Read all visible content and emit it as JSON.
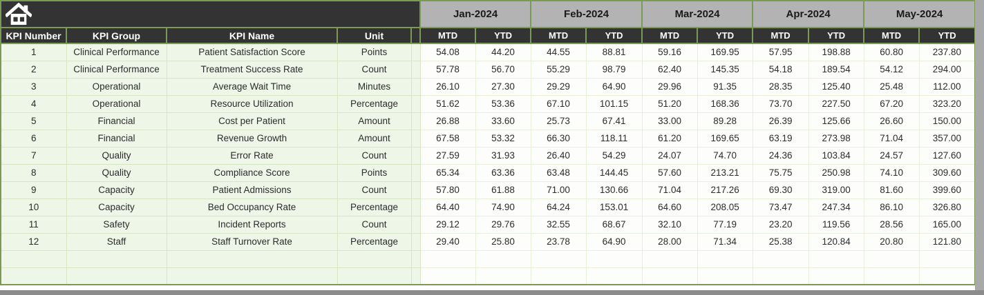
{
  "colors": {
    "header_dark": "#333333",
    "month_gray": "#b3b3b3",
    "border_green": "#7c9a55",
    "row_green": "#eef6e8",
    "scrollbar_gray": "#a9a9a9"
  },
  "table": {
    "home_icon": "home",
    "column_headers": [
      "KPI Number",
      "KPI Group",
      "KPI Name",
      "Unit"
    ],
    "months": [
      "Jan-2024",
      "Feb-2024",
      "Mar-2024",
      "Apr-2024",
      "May-2024"
    ],
    "sub_headers": [
      "MTD",
      "YTD"
    ],
    "rows": [
      {
        "number": "1",
        "group": "Clinical Performance",
        "name": "Patient Satisfaction Score",
        "unit": "Points",
        "values": [
          "54.08",
          "44.20",
          "44.55",
          "88.81",
          "59.16",
          "169.95",
          "57.95",
          "198.88",
          "60.80",
          "237.80"
        ]
      },
      {
        "number": "2",
        "group": "Clinical Performance",
        "name": "Treatment Success Rate",
        "unit": "Count",
        "values": [
          "57.78",
          "56.70",
          "55.29",
          "98.79",
          "62.40",
          "145.35",
          "54.18",
          "189.54",
          "54.12",
          "294.00"
        ]
      },
      {
        "number": "3",
        "group": "Operational",
        "name": "Average Wait Time",
        "unit": "Minutes",
        "values": [
          "26.10",
          "27.30",
          "29.29",
          "64.90",
          "29.96",
          "91.35",
          "28.35",
          "125.40",
          "25.48",
          "112.00"
        ]
      },
      {
        "number": "4",
        "group": "Operational",
        "name": "Resource Utilization",
        "unit": "Percentage",
        "values": [
          "51.62",
          "53.36",
          "67.10",
          "101.15",
          "51.20",
          "168.36",
          "73.70",
          "227.50",
          "67.20",
          "323.20"
        ]
      },
      {
        "number": "5",
        "group": "Financial",
        "name": "Cost per Patient",
        "unit": "Amount",
        "values": [
          "26.88",
          "33.60",
          "25.73",
          "67.41",
          "33.00",
          "89.28",
          "26.39",
          "125.66",
          "26.60",
          "150.00"
        ]
      },
      {
        "number": "6",
        "group": "Financial",
        "name": "Revenue Growth",
        "unit": "Amount",
        "values": [
          "67.58",
          "53.32",
          "66.30",
          "118.11",
          "61.20",
          "169.65",
          "63.19",
          "273.98",
          "71.04",
          "357.00"
        ]
      },
      {
        "number": "7",
        "group": "Quality",
        "name": "Error Rate",
        "unit": "Count",
        "values": [
          "27.59",
          "31.93",
          "26.40",
          "54.29",
          "24.07",
          "74.70",
          "24.36",
          "103.84",
          "24.57",
          "127.60"
        ]
      },
      {
        "number": "8",
        "group": "Quality",
        "name": "Compliance Score",
        "unit": "Points",
        "values": [
          "65.34",
          "63.36",
          "63.48",
          "144.45",
          "57.60",
          "213.21",
          "75.75",
          "250.98",
          "74.10",
          "309.60"
        ]
      },
      {
        "number": "9",
        "group": "Capacity",
        "name": "Patient Admissions",
        "unit": "Count",
        "values": [
          "57.80",
          "61.88",
          "71.00",
          "130.66",
          "71.04",
          "217.26",
          "69.30",
          "319.00",
          "81.60",
          "399.60"
        ]
      },
      {
        "number": "10",
        "group": "Capacity",
        "name": "Bed Occupancy Rate",
        "unit": "Percentage",
        "values": [
          "64.40",
          "74.90",
          "64.24",
          "153.01",
          "64.60",
          "208.05",
          "73.47",
          "247.34",
          "86.10",
          "326.80"
        ]
      },
      {
        "number": "11",
        "group": "Safety",
        "name": "Incident Reports",
        "unit": "Count",
        "values": [
          "29.12",
          "29.76",
          "32.55",
          "68.67",
          "32.10",
          "77.19",
          "23.20",
          "119.56",
          "28.56",
          "165.00"
        ]
      },
      {
        "number": "12",
        "group": "Staff",
        "name": "Staff Turnover Rate",
        "unit": "Percentage",
        "values": [
          "29.40",
          "25.80",
          "23.78",
          "64.90",
          "28.00",
          "71.34",
          "25.38",
          "120.84",
          "20.80",
          "121.80"
        ]
      }
    ],
    "empty_row_count": 2
  }
}
